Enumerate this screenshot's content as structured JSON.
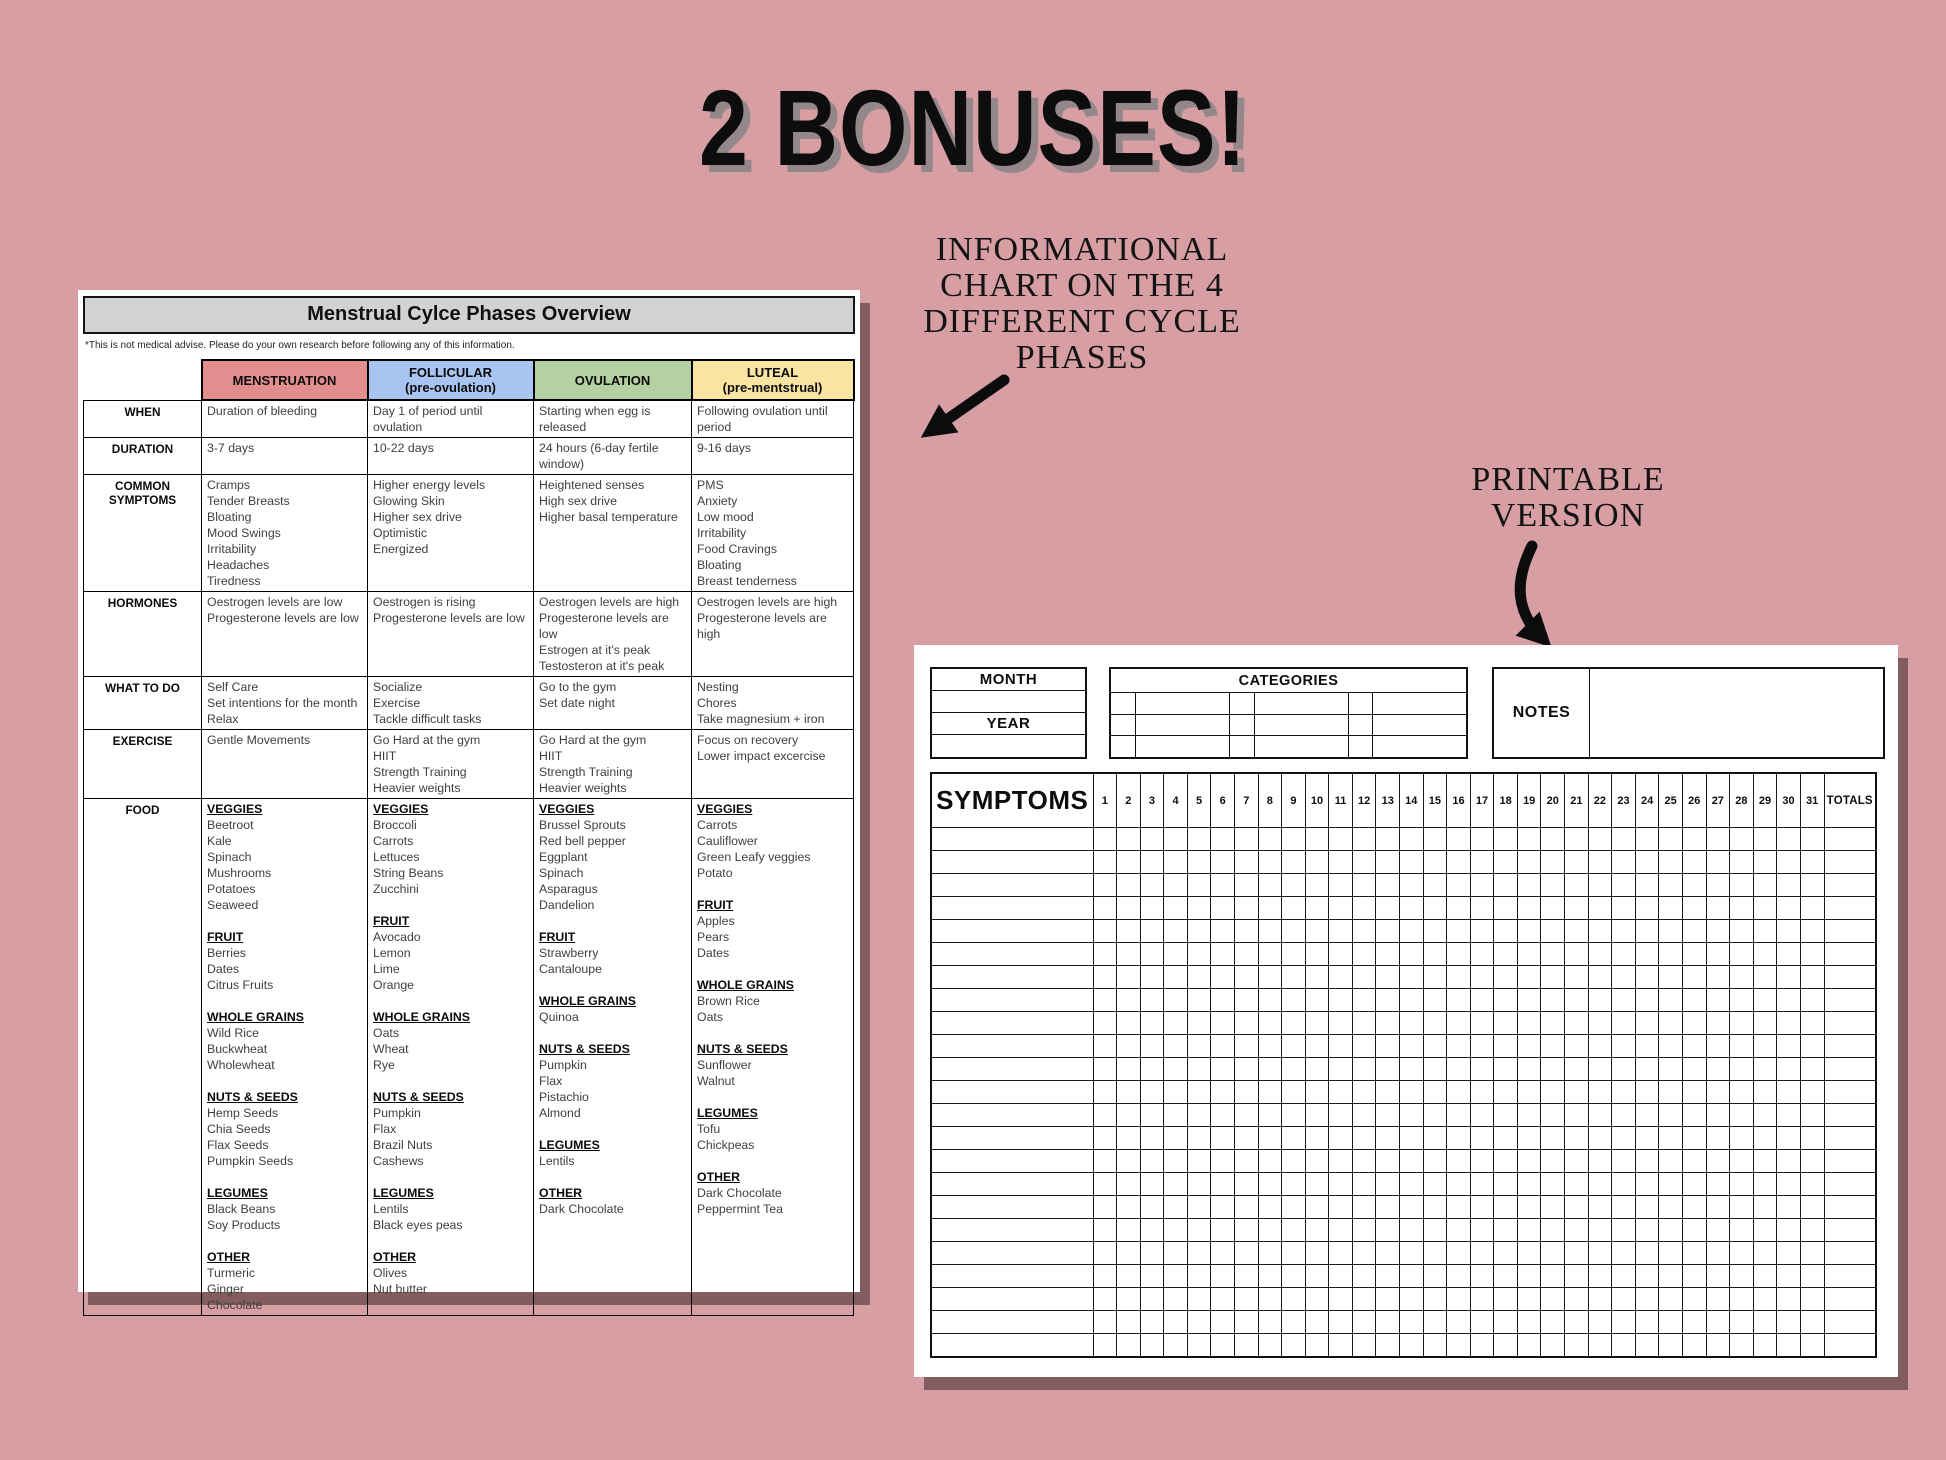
{
  "heading": {
    "title": "2 BONUSES!"
  },
  "annotations": {
    "chart_note": "INFORMATIONAL\nCHART ON THE 4\nDIFFERENT CYCLE\nPHASES",
    "printable_note": "PRINTABLE\nVERSION"
  },
  "colors": {
    "background": "#d79ea3",
    "title_bar": "#d2d2d2",
    "menstruation": "#e28e8e",
    "follicular": "#a8c4f0",
    "ovulation": "#b4d2a1",
    "luteal": "#f9e4a2"
  },
  "chart_doc": {
    "title": "Menstrual Cylce Phases Overview",
    "disclaimer": "*This is not medical advise. Please do your own research before following any of this information.",
    "columns": [
      {
        "id": "menstruation",
        "label": "MENSTRUATION",
        "sub": ""
      },
      {
        "id": "follicular",
        "label": "FOLLICULAR",
        "sub": "(pre-ovulation)"
      },
      {
        "id": "ovulation",
        "label": "OVULATION",
        "sub": ""
      },
      {
        "id": "luteal",
        "label": "LUTEAL",
        "sub": "(pre-mentstrual)"
      }
    ],
    "rows": [
      {
        "label": "WHEN",
        "cells": [
          [
            "Duration of bleeding"
          ],
          [
            "Day 1 of period until ovulation"
          ],
          [
            "Starting when egg is released"
          ],
          [
            "Following ovulation until period"
          ]
        ]
      },
      {
        "label": "DURATION",
        "cells": [
          [
            "3-7 days"
          ],
          [
            "10-22 days"
          ],
          [
            "24 hours (6-day fertile window)"
          ],
          [
            "9-16 days"
          ]
        ]
      },
      {
        "label": "COMMON\nSYMPTOMS",
        "cells": [
          [
            "Cramps",
            "Tender Breasts",
            "Bloating",
            "Mood Swings",
            "Irritability",
            "Headaches",
            "Tiredness"
          ],
          [
            "Higher energy levels",
            "Glowing Skin",
            "Higher sex drive",
            "Optimistic",
            "Energized"
          ],
          [
            "Heightened senses",
            "High sex drive",
            "Higher basal temperature"
          ],
          [
            "PMS",
            "Anxiety",
            "Low mood",
            "Irritability",
            "Food Cravings",
            "Bloating",
            "Breast tenderness"
          ]
        ]
      },
      {
        "label": "HORMONES",
        "cells": [
          [
            "Oestrogen levels are low",
            "Progesterone levels are low"
          ],
          [
            "Oestrogen is rising",
            "Progesterone levels are low"
          ],
          [
            "Oestrogen levels are high",
            "Progesterone levels are low",
            "Estrogen at it's peak",
            "Testosteron at it's peak"
          ],
          [
            "Oestrogen levels are high",
            "Progesterone levels are high"
          ]
        ]
      },
      {
        "label": "WHAT TO DO",
        "cells": [
          [
            "Self Care",
            "Set intentions for the month",
            "Relax"
          ],
          [
            "Socialize",
            "Exercise",
            "Tackle difficult tasks"
          ],
          [
            "Go to the gym",
            "Set date night"
          ],
          [
            "Nesting",
            "Chores",
            "Take magnesium + iron"
          ]
        ]
      },
      {
        "label": "EXERCISE",
        "cells": [
          [
            "Gentle Movements"
          ],
          [
            "Go Hard at the gym",
            "HIIT",
            "Strength Training",
            "Heavier weights"
          ],
          [
            "Go Hard at the gym",
            "HIIT",
            "Strength Training",
            "Heavier weights"
          ],
          [
            "Focus on recovery",
            "Lower impact excercise"
          ]
        ]
      },
      {
        "label": "FOOD",
        "cells": [
          [
            {
              "h": "VEGGIES"
            },
            "Beetroot",
            "Kale",
            "Spinach",
            "Mushrooms",
            "Potatoes",
            "Seaweed",
            "",
            {
              "h": "FRUIT"
            },
            "Berries",
            "Dates",
            "Citrus Fruits",
            "",
            {
              "h": "WHOLE GRAINS"
            },
            "Wild Rice",
            "Buckwheat",
            "Wholewheat",
            "",
            {
              "h": "NUTS & SEEDS"
            },
            "Hemp Seeds",
            "Chia Seeds",
            "Flax Seeds",
            "Pumpkin Seeds",
            "",
            {
              "h": "LEGUMES"
            },
            "Black Beans",
            "Soy Products",
            "",
            {
              "h": "OTHER"
            },
            "Turmeric",
            "Ginger",
            "Chocolate"
          ],
          [
            {
              "h": "VEGGIES"
            },
            "Broccoli",
            "Carrots",
            "Lettuces",
            "String Beans",
            "Zucchini",
            "",
            {
              "h": "FRUIT"
            },
            "Avocado",
            "Lemon",
            "Lime",
            "Orange",
            "",
            {
              "h": "WHOLE GRAINS"
            },
            "Oats",
            "Wheat",
            "Rye",
            "",
            {
              "h": "NUTS & SEEDS"
            },
            "Pumpkin",
            "Flax",
            "Brazil Nuts",
            "Cashews",
            "",
            {
              "h": "LEGUMES"
            },
            "Lentils",
            "Black eyes peas",
            "",
            {
              "h": "OTHER"
            },
            "Olives",
            "Nut butter"
          ],
          [
            {
              "h": "VEGGIES"
            },
            "Brussel Sprouts",
            "Red bell pepper",
            "Eggplant",
            "Spinach",
            "Asparagus",
            "Dandelion",
            "",
            {
              "h": "FRUIT"
            },
            "Strawberry",
            "Cantaloupe",
            "",
            {
              "h": "WHOLE GRAINS"
            },
            "Quinoa",
            "",
            {
              "h": "NUTS & SEEDS"
            },
            "Pumpkin",
            "Flax",
            "Pistachio",
            "Almond",
            "",
            {
              "h": "LEGUMES"
            },
            "Lentils",
            "",
            {
              "h": "OTHER"
            },
            "Dark Chocolate"
          ],
          [
            {
              "h": "VEGGIES"
            },
            "Carrots",
            "Cauliflower",
            "Green Leafy veggies",
            "Potato",
            "",
            {
              "h": "FRUIT"
            },
            "Apples",
            "Pears",
            "Dates",
            "",
            {
              "h": "WHOLE GRAINS"
            },
            "Brown Rice",
            "Oats",
            "",
            {
              "h": "NUTS & SEEDS"
            },
            "Sunflower",
            "Walnut",
            "",
            {
              "h": "LEGUMES"
            },
            "Tofu",
            "Chickpeas",
            "",
            {
              "h": "OTHER"
            },
            "Dark Chocolate",
            "Peppermint Tea"
          ]
        ]
      }
    ]
  },
  "tracker_doc": {
    "month_label": "MONTH",
    "year_label": "YEAR",
    "categories_label": "CATEGORIES",
    "notes_label": "NOTES",
    "symptoms_label": "SYMPTOMS",
    "totals_label": "TOTALS",
    "days": [
      1,
      2,
      3,
      4,
      5,
      6,
      7,
      8,
      9,
      10,
      11,
      12,
      13,
      14,
      15,
      16,
      17,
      18,
      19,
      20,
      21,
      22,
      23,
      24,
      25,
      26,
      27,
      28,
      29,
      30,
      31
    ],
    "category_grid": {
      "rows": 3,
      "pairs": 3
    },
    "symptom_grid_rows": 23
  }
}
